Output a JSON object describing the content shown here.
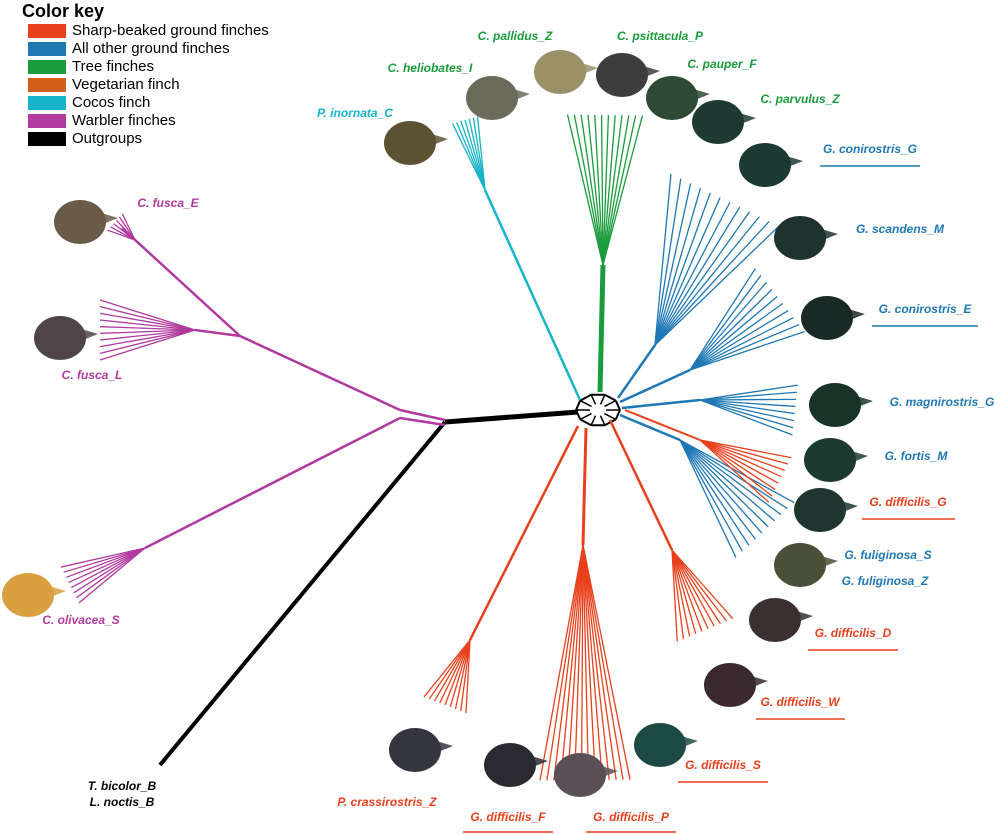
{
  "legend": {
    "title": "Color key",
    "items": [
      {
        "label": "Sharp-beaked ground finches",
        "color": "#e8401c"
      },
      {
        "label": "All other ground finches",
        "color": "#1f78b4"
      },
      {
        "label": "Tree finches",
        "color": "#1a9b3c"
      },
      {
        "label": "Vegetarian finch",
        "color": "#d2601a"
      },
      {
        "label": "Cocos finch",
        "color": "#17b3c8"
      },
      {
        "label": "Warbler finches",
        "color": "#b03a9e"
      },
      {
        "label": "Outgroups",
        "color": "#000000"
      }
    ]
  },
  "taxa": [
    "C. pallidus_Z",
    "C. psittacula_P",
    "C. heliobates_I",
    "C. pauper_F",
    "P. inornata_C",
    "C. parvulus_Z",
    "G. conirostris_G",
    "C. fusca_E",
    "G. scandens_M",
    "G. conirostris_E",
    "C. fusca_L",
    "G. magnirostris_G",
    "G. fortis_M",
    "G. difficilis_G",
    "G. fuliginosa_S",
    "G. fuliginosa_Z",
    "C. olivacea_S",
    "G. difficilis_D",
    "G. difficilis_W",
    "G. difficilis_S",
    "T. bicolor_B",
    "L. noctis_B",
    "P. crassirostris_Z",
    "G. difficilis_F",
    "G. difficilis_P"
  ]
}
